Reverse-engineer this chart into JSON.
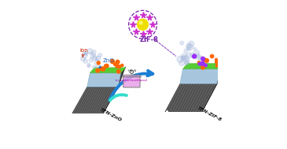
{
  "bg_color": "#ffffff",
  "left_membrane": {
    "label": "TFN-ZnO",
    "np_color": "#ff6600",
    "np_label_color": "#1a5fbf"
  },
  "right_membrane": {
    "label": "TFN-ZIF-8",
    "np_color_orange": "#ff6600",
    "np_color_purple": "#9b30ff"
  },
  "arrow_color_end": "#1a7fd4",
  "beaker_color": "#e8a0e8",
  "beaker_label": "in water/methanol",
  "beaker_label_color": "#aa00aa",
  "zif8_label": "ZIF-8",
  "ion_label": "ion",
  "ion_label_color": "#cc2200",
  "zno_label": "ZnO",
  "zno_label_color": "#1a5fbf",
  "green_top": "#55cc33",
  "blue_layer": "#8ab4d4",
  "dark_support": "#505050"
}
